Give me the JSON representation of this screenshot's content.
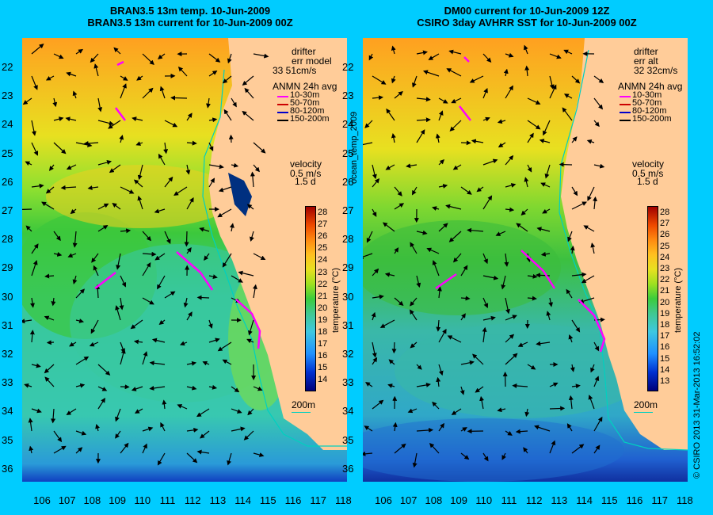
{
  "titles": {
    "left_line1": "BRAN3.5 13m temp. 10-Jun-2009",
    "left_line2": "BRAN3.5 13m current for 10-Jun-2009 00Z",
    "right_line1": "DM00 current for 10-Jun-2009 12Z",
    "right_line2": "CSIRO 3day AVHRR SST for 10-Jun-2009 00Z"
  },
  "y_ticks": [
    "22",
    "23",
    "24",
    "25",
    "26",
    "27",
    "28",
    "29",
    "30",
    "31",
    "32",
    "33",
    "34",
    "35",
    "36"
  ],
  "x_ticks": [
    "106",
    "107",
    "108",
    "109",
    "110",
    "111",
    "112",
    "113",
    "114",
    "115",
    "116",
    "117",
    "118"
  ],
  "left_legend": {
    "drifter": "drifter",
    "err_label": "err model",
    "err_value": "33 51cm/s",
    "anmn": "ANMN 24h avg",
    "depths": [
      "10-30m",
      "50-70m",
      "80-120m",
      "150-200m"
    ],
    "depth_colors": [
      "#ff00ff",
      "#cc0000",
      "#0000cc",
      "#000000"
    ],
    "velocity": "velocity",
    "vel_value": "0.5 m/s",
    "vel_days": "1.5 d",
    "scale": "200m"
  },
  "right_legend": {
    "drifter": "drifter",
    "err_label": "err alt",
    "err_value": "32 32cm/s",
    "anmn": "ANMN 24h avg",
    "depths": [
      "10-30m",
      "50-70m",
      "80-120m",
      "150-200m"
    ],
    "velocity": "velocity",
    "vel_value": "0.5 m/s",
    "vel_days": "1.5 d",
    "scale": "200m"
  },
  "colorbar": {
    "ticks": [
      "28",
      "27",
      "26",
      "25",
      "24",
      "23",
      "22",
      "21",
      "20",
      "19",
      "18",
      "17",
      "16",
      "15",
      "14"
    ],
    "ticks_right": [
      "28",
      "27",
      "26",
      "25",
      "24",
      "23",
      "22",
      "21",
      "20",
      "19",
      "18",
      "17",
      "16",
      "15",
      "14",
      "13"
    ],
    "label": "temperature (°C)"
  },
  "side_label": "ocean_temp_2009",
  "credit": "© CSIRO 2013   31-Mar-2013 16:52:02",
  "colors": {
    "background": "#00ccff",
    "land": "#ffcc99",
    "isobath": "#00d0c0"
  }
}
